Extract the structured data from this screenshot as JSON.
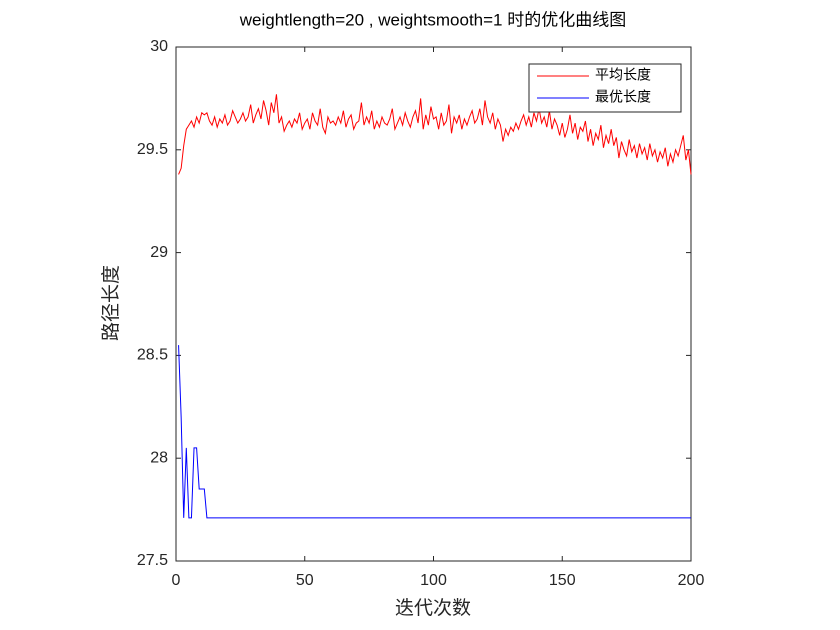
{
  "chart_data": {
    "type": "line",
    "title": "weightlength=20 , weightsmooth=1 时的优化曲线图",
    "x_label": "迭代次数",
    "y_label": "路径长度",
    "xlim": [
      0,
      200
    ],
    "xticks": [
      0,
      50,
      100,
      150,
      200
    ],
    "ylim": [
      27.5,
      30
    ],
    "yticks": [
      27.5,
      28,
      28.5,
      29,
      29.5,
      30
    ],
    "legend_position": "northeast",
    "x": [
      1,
      2,
      3,
      4,
      5,
      6,
      7,
      8,
      9,
      10,
      11,
      12,
      13,
      14,
      15,
      16,
      17,
      18,
      19,
      20,
      21,
      22,
      23,
      24,
      25,
      26,
      27,
      28,
      29,
      30,
      31,
      32,
      33,
      34,
      35,
      36,
      37,
      38,
      39,
      40,
      41,
      42,
      43,
      44,
      45,
      46,
      47,
      48,
      49,
      50,
      51,
      52,
      53,
      54,
      55,
      56,
      57,
      58,
      59,
      60,
      61,
      62,
      63,
      64,
      65,
      66,
      67,
      68,
      69,
      70,
      71,
      72,
      73,
      74,
      75,
      76,
      77,
      78,
      79,
      80,
      81,
      82,
      83,
      84,
      85,
      86,
      87,
      88,
      89,
      90,
      91,
      92,
      93,
      94,
      95,
      96,
      97,
      98,
      99,
      100,
      101,
      102,
      103,
      104,
      105,
      106,
      107,
      108,
      109,
      110,
      111,
      112,
      113,
      114,
      115,
      116,
      117,
      118,
      119,
      120,
      121,
      122,
      123,
      124,
      125,
      126,
      127,
      128,
      129,
      130,
      131,
      132,
      133,
      134,
      135,
      136,
      137,
      138,
      139,
      140,
      141,
      142,
      143,
      144,
      145,
      146,
      147,
      148,
      149,
      150,
      151,
      152,
      153,
      154,
      155,
      156,
      157,
      158,
      159,
      160,
      161,
      162,
      163,
      164,
      165,
      166,
      167,
      168,
      169,
      170,
      171,
      172,
      173,
      174,
      175,
      176,
      177,
      178,
      179,
      180,
      181,
      182,
      183,
      184,
      185,
      186,
      187,
      188,
      189,
      190,
      191,
      192,
      193,
      194,
      195,
      196,
      197,
      198,
      199,
      200
    ],
    "series": [
      {
        "name": "平均长度",
        "color": "#ff0000",
        "values": [
          29.38,
          29.41,
          29.52,
          29.6,
          29.62,
          29.64,
          29.61,
          29.66,
          29.63,
          29.68,
          29.67,
          29.68,
          29.64,
          29.62,
          29.66,
          29.61,
          29.65,
          29.63,
          29.67,
          29.62,
          29.64,
          29.69,
          29.66,
          29.63,
          29.65,
          29.68,
          29.64,
          29.66,
          29.72,
          29.63,
          29.67,
          29.7,
          29.65,
          29.74,
          29.69,
          29.62,
          29.73,
          29.68,
          29.77,
          29.63,
          29.66,
          29.59,
          29.62,
          29.64,
          29.61,
          29.65,
          29.63,
          29.68,
          29.6,
          29.63,
          29.65,
          29.6,
          29.68,
          29.64,
          29.62,
          29.7,
          29.61,
          29.58,
          29.66,
          29.63,
          29.64,
          29.62,
          29.66,
          29.63,
          29.69,
          29.61,
          29.65,
          29.67,
          29.6,
          29.63,
          29.64,
          29.73,
          29.62,
          29.66,
          29.63,
          29.69,
          29.6,
          29.64,
          29.61,
          29.66,
          29.63,
          29.62,
          29.65,
          29.7,
          29.6,
          29.63,
          29.66,
          29.62,
          29.68,
          29.64,
          29.61,
          29.66,
          29.69,
          29.63,
          29.75,
          29.6,
          29.67,
          29.62,
          29.71,
          29.65,
          29.66,
          29.6,
          29.68,
          29.62,
          29.64,
          29.72,
          29.58,
          29.66,
          29.63,
          29.67,
          29.6,
          29.65,
          29.62,
          29.66,
          29.69,
          29.63,
          29.65,
          29.7,
          29.62,
          29.74,
          29.66,
          29.63,
          29.68,
          29.6,
          29.65,
          29.62,
          29.54,
          29.6,
          29.57,
          29.61,
          29.59,
          29.63,
          29.6,
          29.64,
          29.67,
          29.62,
          29.66,
          29.61,
          29.68,
          29.64,
          29.7,
          29.63,
          29.66,
          29.61,
          29.69,
          29.6,
          29.65,
          29.62,
          29.57,
          29.63,
          29.56,
          29.6,
          29.67,
          29.58,
          29.63,
          29.55,
          29.61,
          29.59,
          29.64,
          29.54,
          29.6,
          29.52,
          29.58,
          29.55,
          29.62,
          29.51,
          29.57,
          29.53,
          29.6,
          29.52,
          29.56,
          29.46,
          29.54,
          29.5,
          29.47,
          29.55,
          29.49,
          29.52,
          29.46,
          29.53,
          29.48,
          29.51,
          29.45,
          29.53,
          29.47,
          29.5,
          29.44,
          29.49,
          29.46,
          29.51,
          29.42,
          29.48,
          29.44,
          29.5,
          29.47,
          29.52,
          29.57,
          29.45,
          29.5,
          29.38
        ]
      },
      {
        "name": "最优长度",
        "color": "#0000ff",
        "values": [
          28.55,
          28.2,
          27.71,
          28.05,
          27.71,
          27.71,
          28.05,
          28.05,
          27.85,
          27.85,
          27.85,
          27.71,
          27.71,
          27.71,
          27.71,
          27.71,
          27.71,
          27.71,
          27.71,
          27.71,
          27.71,
          27.71,
          27.71,
          27.71,
          27.71,
          27.71,
          27.71,
          27.71,
          27.71,
          27.71,
          27.71,
          27.71,
          27.71,
          27.71,
          27.71,
          27.71,
          27.71,
          27.71,
          27.71,
          27.71,
          27.71,
          27.71,
          27.71,
          27.71,
          27.71,
          27.71,
          27.71,
          27.71,
          27.71,
          27.71,
          27.71,
          27.71,
          27.71,
          27.71,
          27.71,
          27.71,
          27.71,
          27.71,
          27.71,
          27.71,
          27.71,
          27.71,
          27.71,
          27.71,
          27.71,
          27.71,
          27.71,
          27.71,
          27.71,
          27.71,
          27.71,
          27.71,
          27.71,
          27.71,
          27.71,
          27.71,
          27.71,
          27.71,
          27.71,
          27.71,
          27.71,
          27.71,
          27.71,
          27.71,
          27.71,
          27.71,
          27.71,
          27.71,
          27.71,
          27.71,
          27.71,
          27.71,
          27.71,
          27.71,
          27.71,
          27.71,
          27.71,
          27.71,
          27.71,
          27.71,
          27.71,
          27.71,
          27.71,
          27.71,
          27.71,
          27.71,
          27.71,
          27.71,
          27.71,
          27.71,
          27.71,
          27.71,
          27.71,
          27.71,
          27.71,
          27.71,
          27.71,
          27.71,
          27.71,
          27.71,
          27.71,
          27.71,
          27.71,
          27.71,
          27.71,
          27.71,
          27.71,
          27.71,
          27.71,
          27.71,
          27.71,
          27.71,
          27.71,
          27.71,
          27.71,
          27.71,
          27.71,
          27.71,
          27.71,
          27.71,
          27.71,
          27.71,
          27.71,
          27.71,
          27.71,
          27.71,
          27.71,
          27.71,
          27.71,
          27.71,
          27.71,
          27.71,
          27.71,
          27.71,
          27.71,
          27.71,
          27.71,
          27.71,
          27.71,
          27.71,
          27.71,
          27.71,
          27.71,
          27.71,
          27.71,
          27.71,
          27.71,
          27.71,
          27.71,
          27.71,
          27.71,
          27.71,
          27.71,
          27.71,
          27.71,
          27.71,
          27.71,
          27.71,
          27.71,
          27.71,
          27.71,
          27.71,
          27.71,
          27.71,
          27.71,
          27.71,
          27.71,
          27.71,
          27.71,
          27.71,
          27.71,
          27.71,
          27.71,
          27.71,
          27.71,
          27.71,
          27.71,
          27.71,
          27.71,
          27.71
        ]
      }
    ]
  }
}
